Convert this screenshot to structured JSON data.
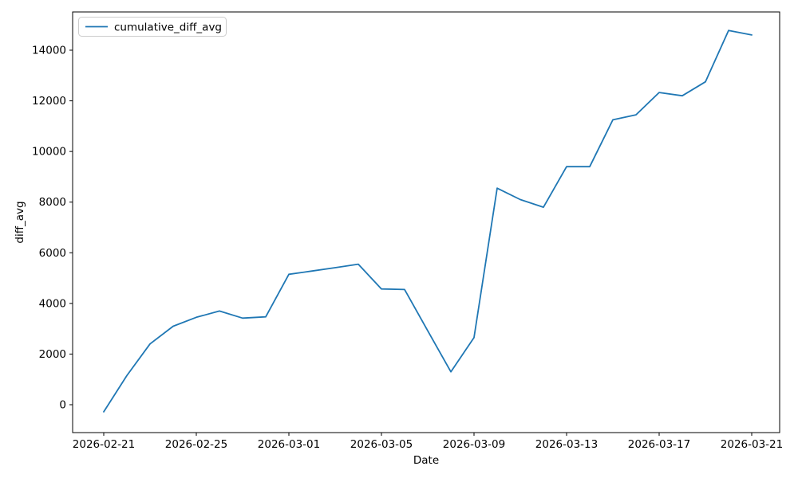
{
  "figure": {
    "background": "#ffffff",
    "spine_color": "#000000"
  },
  "chart_data": {
    "type": "line",
    "title": "",
    "xlabel": "Date",
    "ylabel": "diff_avg",
    "grid": false,
    "legend_position": "upper left",
    "line_color": "#1f77b4",
    "legend_edge_color": "#cccccc",
    "x": [
      "2026-02-21",
      "2026-02-22",
      "2026-02-23",
      "2026-02-24",
      "2026-02-25",
      "2026-02-26",
      "2026-02-27",
      "2026-02-28",
      "2026-03-01",
      "2026-03-02",
      "2026-03-03",
      "2026-03-04",
      "2026-03-05",
      "2026-03-06",
      "2026-03-07",
      "2026-03-08",
      "2026-03-09",
      "2026-03-10",
      "2026-03-11",
      "2026-03-12",
      "2026-03-13",
      "2026-03-14",
      "2026-03-15",
      "2026-03-16",
      "2026-03-17",
      "2026-03-18",
      "2026-03-19",
      "2026-03-20",
      "2026-03-21"
    ],
    "series": [
      {
        "name": "cumulative_diff_avg",
        "values": [
          -280,
          1150,
          2400,
          3100,
          3450,
          3700,
          3420,
          3470,
          5150,
          5280,
          5410,
          5550,
          4570,
          4550,
          2920,
          1300,
          2650,
          8550,
          8100,
          7800,
          9400,
          9400,
          11250,
          11450,
          12330,
          12200,
          12750,
          14780,
          14600
        ]
      }
    ],
    "x_tick_labels": [
      "2026-02-21",
      "2026-02-25",
      "2026-03-01",
      "2026-03-05",
      "2026-03-09",
      "2026-03-13",
      "2026-03-17",
      "2026-03-21"
    ],
    "x_tick_indices": [
      0,
      4,
      8,
      12,
      16,
      20,
      24,
      28
    ],
    "y_ticks": [
      0,
      2000,
      4000,
      6000,
      8000,
      10000,
      12000,
      14000
    ],
    "ylim": [
      -1100,
      15500
    ]
  }
}
